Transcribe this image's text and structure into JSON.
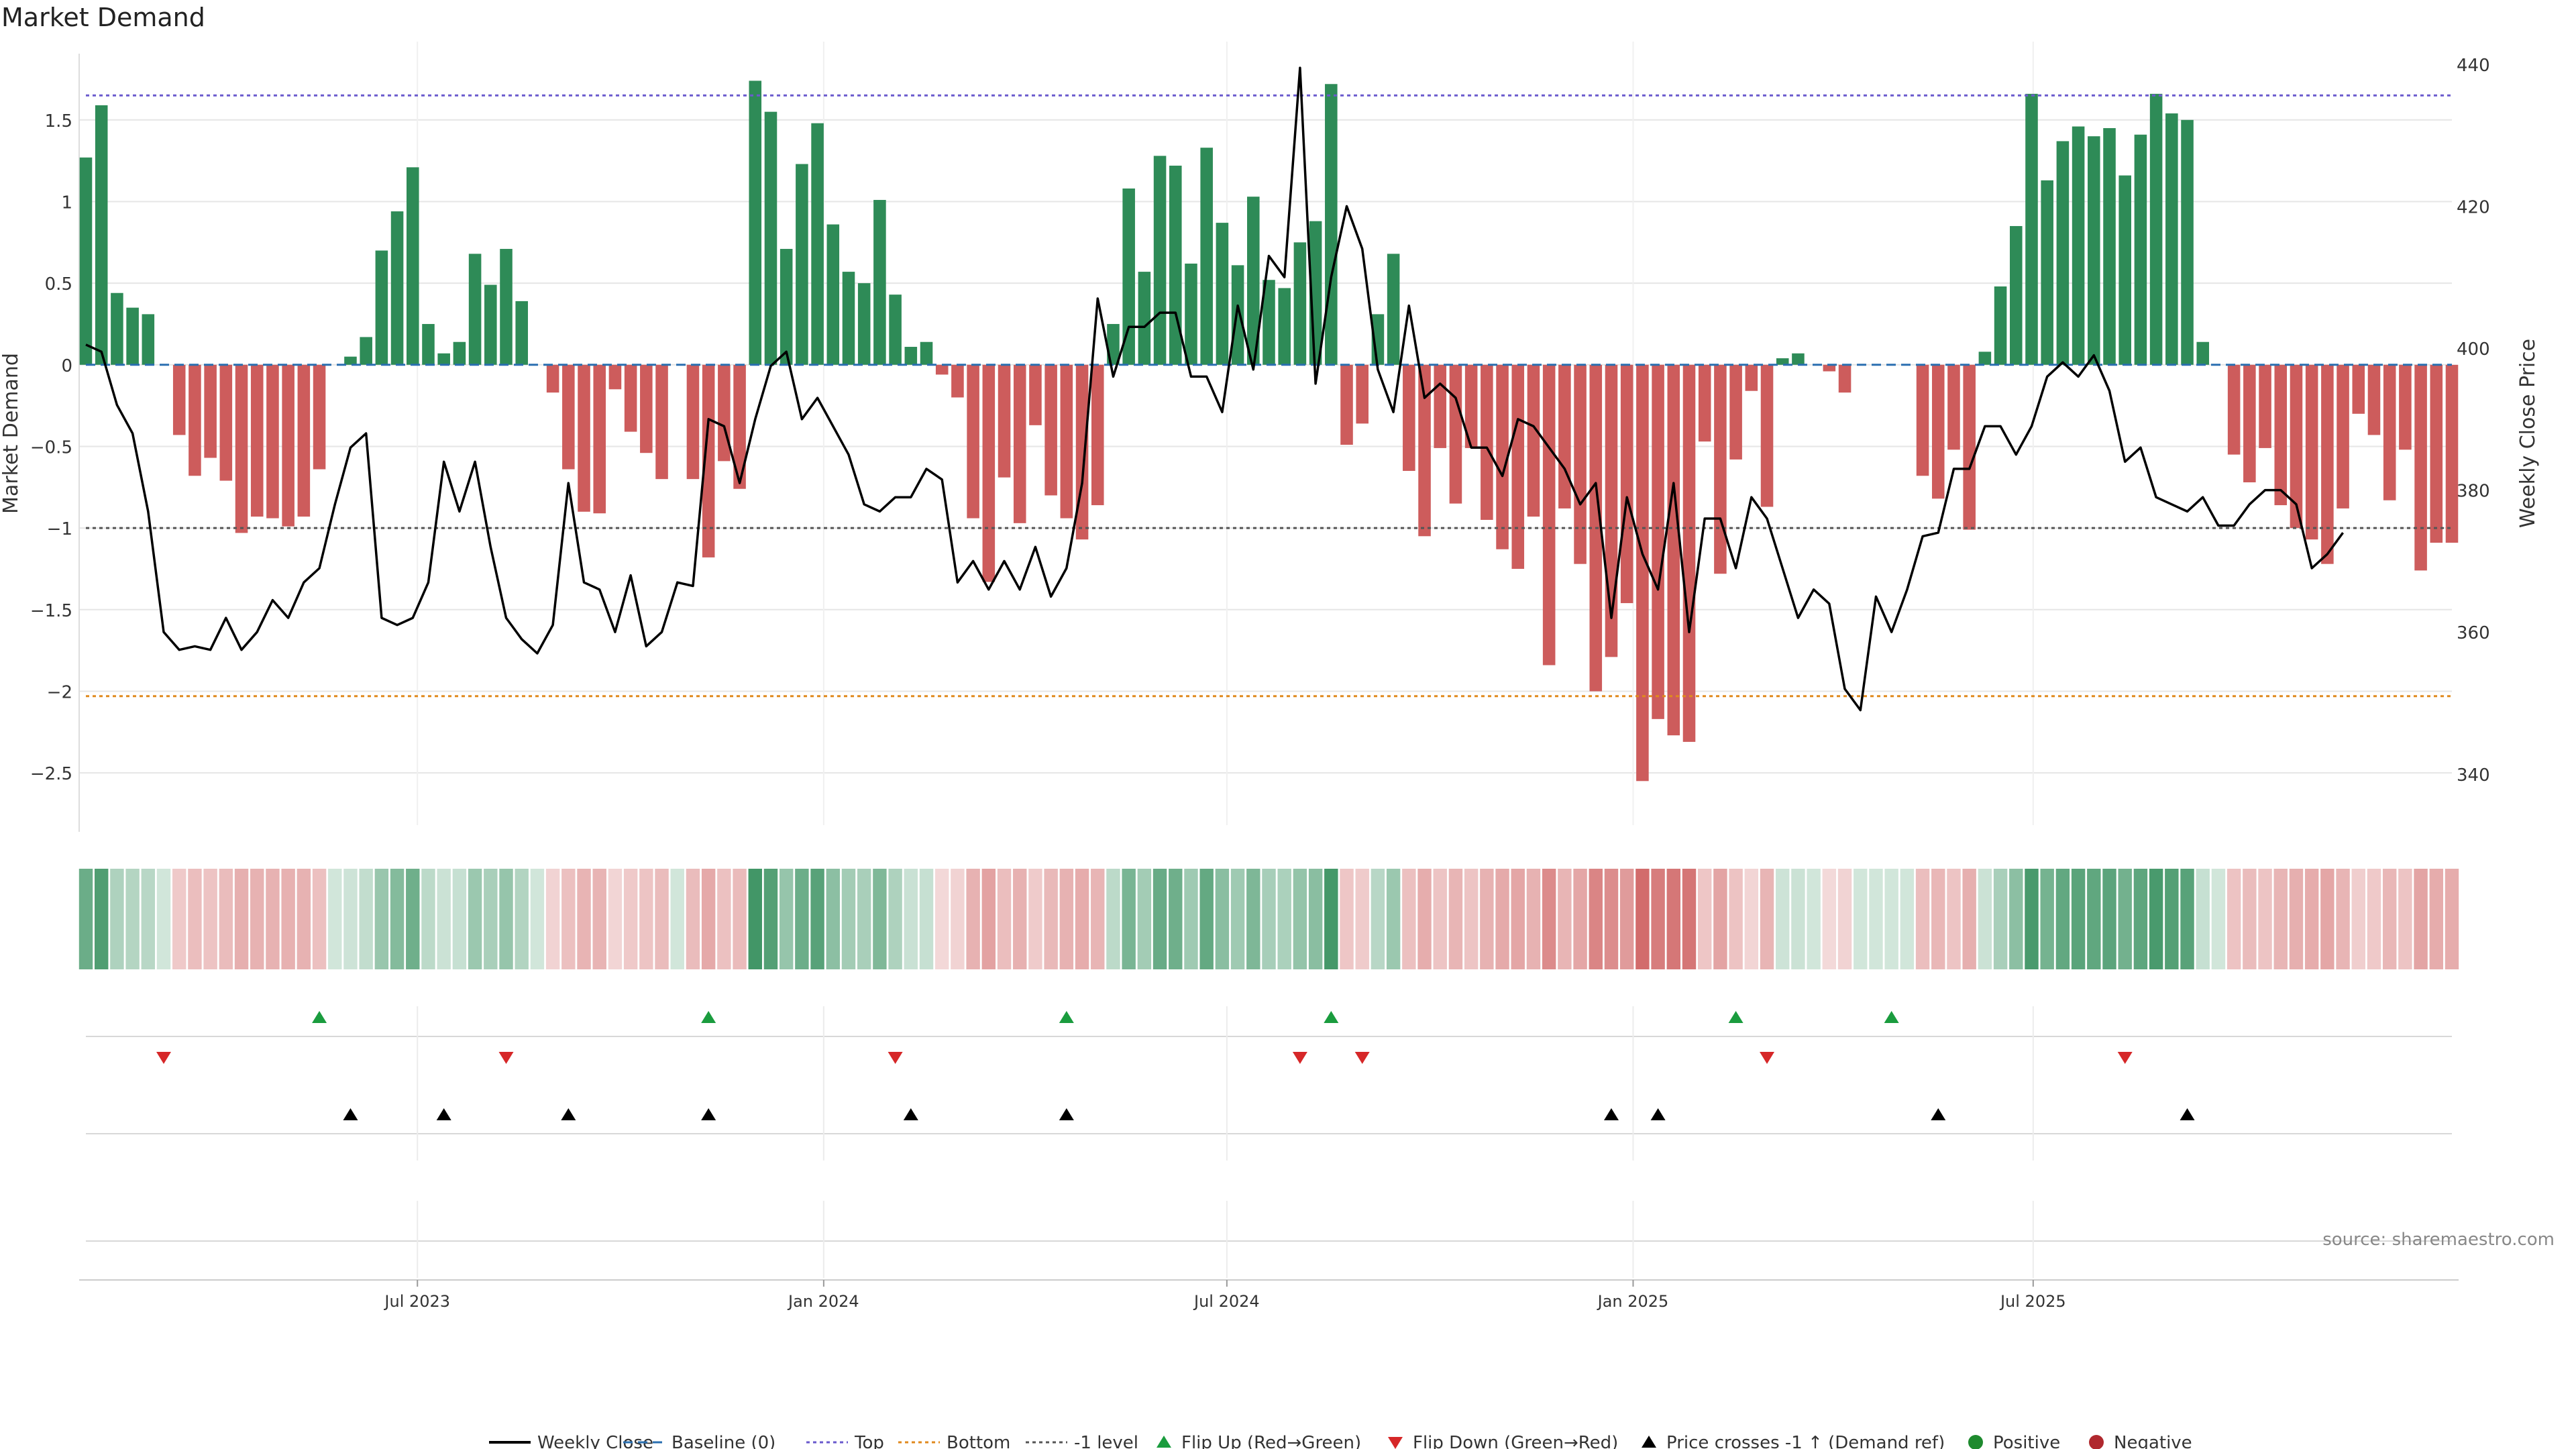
{
  "title": "Market Demand",
  "source": "source: sharemaestro.com",
  "colors": {
    "positive": "#2e8b57",
    "negative": "#cd5c5c",
    "price_line": "#000000",
    "top": "#6a5acd",
    "bottom": "#e08a1e",
    "minus1": "#555555",
    "flip_up": "#1a9c3e",
    "flip_down": "#d62728",
    "cross": "#000000",
    "grid": "#e6e6e6"
  },
  "chart_data": {
    "type": "bar",
    "title": "Market Demand",
    "ylabel": "Market Demand",
    "y2label": "Weekly Close Price",
    "ylim": [
      -2.82,
      1.98
    ],
    "y2lim": [
      332.8,
      443.2
    ],
    "yticks": [
      1.5,
      1,
      0.5,
      0,
      -0.5,
      -1,
      -1.5,
      -2,
      -2.5
    ],
    "ytick_labels": [
      "1.5",
      "1",
      "0.5",
      "0",
      "−0.5",
      "−1",
      "−1.5",
      "−2",
      "−2.5"
    ],
    "y2ticks": [
      440,
      420,
      400,
      380,
      360,
      340
    ],
    "y2tick_labels": [
      "440",
      "420",
      "400",
      "380",
      "360",
      "340"
    ],
    "x_tick_labels": [
      {
        "label": "Jul 2023",
        "week": 21.3
      },
      {
        "label": "Jan 2024",
        "week": 47.4
      },
      {
        "label": "Jul 2024",
        "week": 73.3
      },
      {
        "label": "Jan 2025",
        "week": 99.4
      },
      {
        "label": "Jul 2025",
        "week": 125.1
      }
    ],
    "reference_lines": {
      "top": 1.65,
      "bottom": -2.03,
      "minus_one": -1.0,
      "baseline": 0
    },
    "demand": [
      1.27,
      1.59,
      0.44,
      0.35,
      0.31,
      0,
      -0.43,
      -0.68,
      -0.57,
      -0.71,
      -1.03,
      -0.93,
      -0.94,
      -0.99,
      -0.93,
      -0.64,
      0,
      0.05,
      0.17,
      0.7,
      0.94,
      1.21,
      0.25,
      0.07,
      0.14,
      0.68,
      0.49,
      0.71,
      0.39,
      0,
      -0.17,
      -0.64,
      -0.9,
      -0.91,
      -0.15,
      -0.41,
      -0.54,
      -0.7,
      0,
      -0.7,
      -1.18,
      -0.59,
      -0.76,
      1.74,
      1.55,
      0.71,
      1.23,
      1.48,
      0.86,
      0.57,
      0.5,
      1.01,
      0.43,
      0.11,
      0.14,
      -0.06,
      -0.2,
      -0.94,
      -1.33,
      -0.69,
      -0.97,
      -0.37,
      -0.8,
      -0.94,
      -1.07,
      -0.86,
      0.25,
      1.08,
      0.57,
      1.28,
      1.22,
      0.62,
      1.33,
      0.87,
      0.61,
      1.03,
      0.52,
      0.47,
      0.75,
      0.88,
      1.72,
      -0.49,
      -0.36,
      0.31,
      0.68,
      -0.65,
      -1.05,
      -0.51,
      -0.85,
      -0.51,
      -0.95,
      -1.13,
      -1.25,
      -0.93,
      -1.84,
      -0.88,
      -1.22,
      -2.0,
      -1.79,
      -1.46,
      -2.55,
      -2.17,
      -2.27,
      -2.31,
      -0.47,
      -1.28,
      -0.58,
      -0.16,
      -0.87,
      0.04,
      0.07,
      0,
      -0.04,
      -0.17,
      0,
      0,
      0,
      0,
      -0.68,
      -0.82,
      -0.52,
      -1.01,
      0.08,
      0.48,
      0.85,
      1.66,
      1.13,
      1.37,
      1.46,
      1.4,
      1.45,
      1.16,
      1.41,
      1.66,
      1.54,
      1.5,
      0.14,
      0,
      -0.55,
      -0.72,
      -0.51,
      -0.86,
      -1.0,
      -1.07,
      -1.22,
      -0.88,
      -0.3,
      -0.43,
      -0.83,
      -0.52,
      -1.26,
      -1.09,
      -1.09
    ],
    "weekly_close": [
      400.5,
      399.5,
      392,
      388,
      377,
      360,
      357.5,
      358,
      357.5,
      362,
      357.5,
      360,
      364.5,
      362,
      367,
      369,
      378,
      386,
      388,
      362,
      361,
      362,
      367,
      384,
      377,
      384,
      372,
      362,
      359,
      357,
      361,
      381,
      367,
      366,
      360,
      368,
      358,
      360,
      367,
      366.5,
      390,
      389,
      381,
      390,
      397.5,
      399.5,
      390,
      393,
      389,
      385,
      378,
      377,
      379,
      379,
      383,
      381.5,
      367,
      370,
      366,
      370,
      366,
      372,
      365,
      369,
      381,
      407,
      396,
      403,
      403,
      405,
      405,
      396,
      396,
      391,
      406,
      397,
      413,
      410,
      439.5,
      395,
      410,
      420,
      414,
      397,
      391,
      406,
      393,
      395,
      393,
      386,
      386,
      382,
      390,
      389,
      386,
      383,
      378,
      381,
      362,
      379,
      371,
      366,
      381,
      360,
      376,
      376,
      369,
      379,
      376,
      369,
      362,
      366,
      364,
      352,
      349,
      365,
      360,
      366,
      373.5,
      374,
      383,
      383,
      389,
      389,
      385,
      389,
      396,
      398,
      396,
      399,
      394,
      384,
      386,
      379,
      378,
      377,
      379,
      375,
      375,
      378,
      380,
      380,
      378,
      369,
      371,
      374
    ]
  },
  "timeline": {
    "flip_up_weeks": [
      15,
      40,
      63,
      80,
      106,
      116
    ],
    "flip_down_weeks": [
      5,
      27,
      52,
      78,
      82,
      108,
      131
    ],
    "cross_weeks": [
      17,
      23,
      31,
      40,
      53,
      63,
      98,
      101,
      119,
      135
    ]
  },
  "legend": [
    {
      "label": "Weekly Close",
      "icon": "solid-line-icon"
    },
    {
      "label": "Baseline (0)",
      "icon": "dashed-line-icon"
    },
    {
      "label": "Top",
      "icon": "dotted-line-icon"
    },
    {
      "label": "Bottom",
      "icon": "dotted-line-icon"
    },
    {
      "label": "-1 level",
      "icon": "dotted-line-icon"
    },
    {
      "label": "Flip Up (Red→Green)",
      "icon": "triangle-up-icon"
    },
    {
      "label": "Flip Down (Green→Red)",
      "icon": "triangle-down-icon"
    },
    {
      "label": "Price crosses -1 ↑ (Demand ref)",
      "icon": "triangle-up-icon"
    },
    {
      "label": "Positive",
      "icon": "circle-icon"
    },
    {
      "label": "Negative",
      "icon": "circle-icon"
    }
  ]
}
